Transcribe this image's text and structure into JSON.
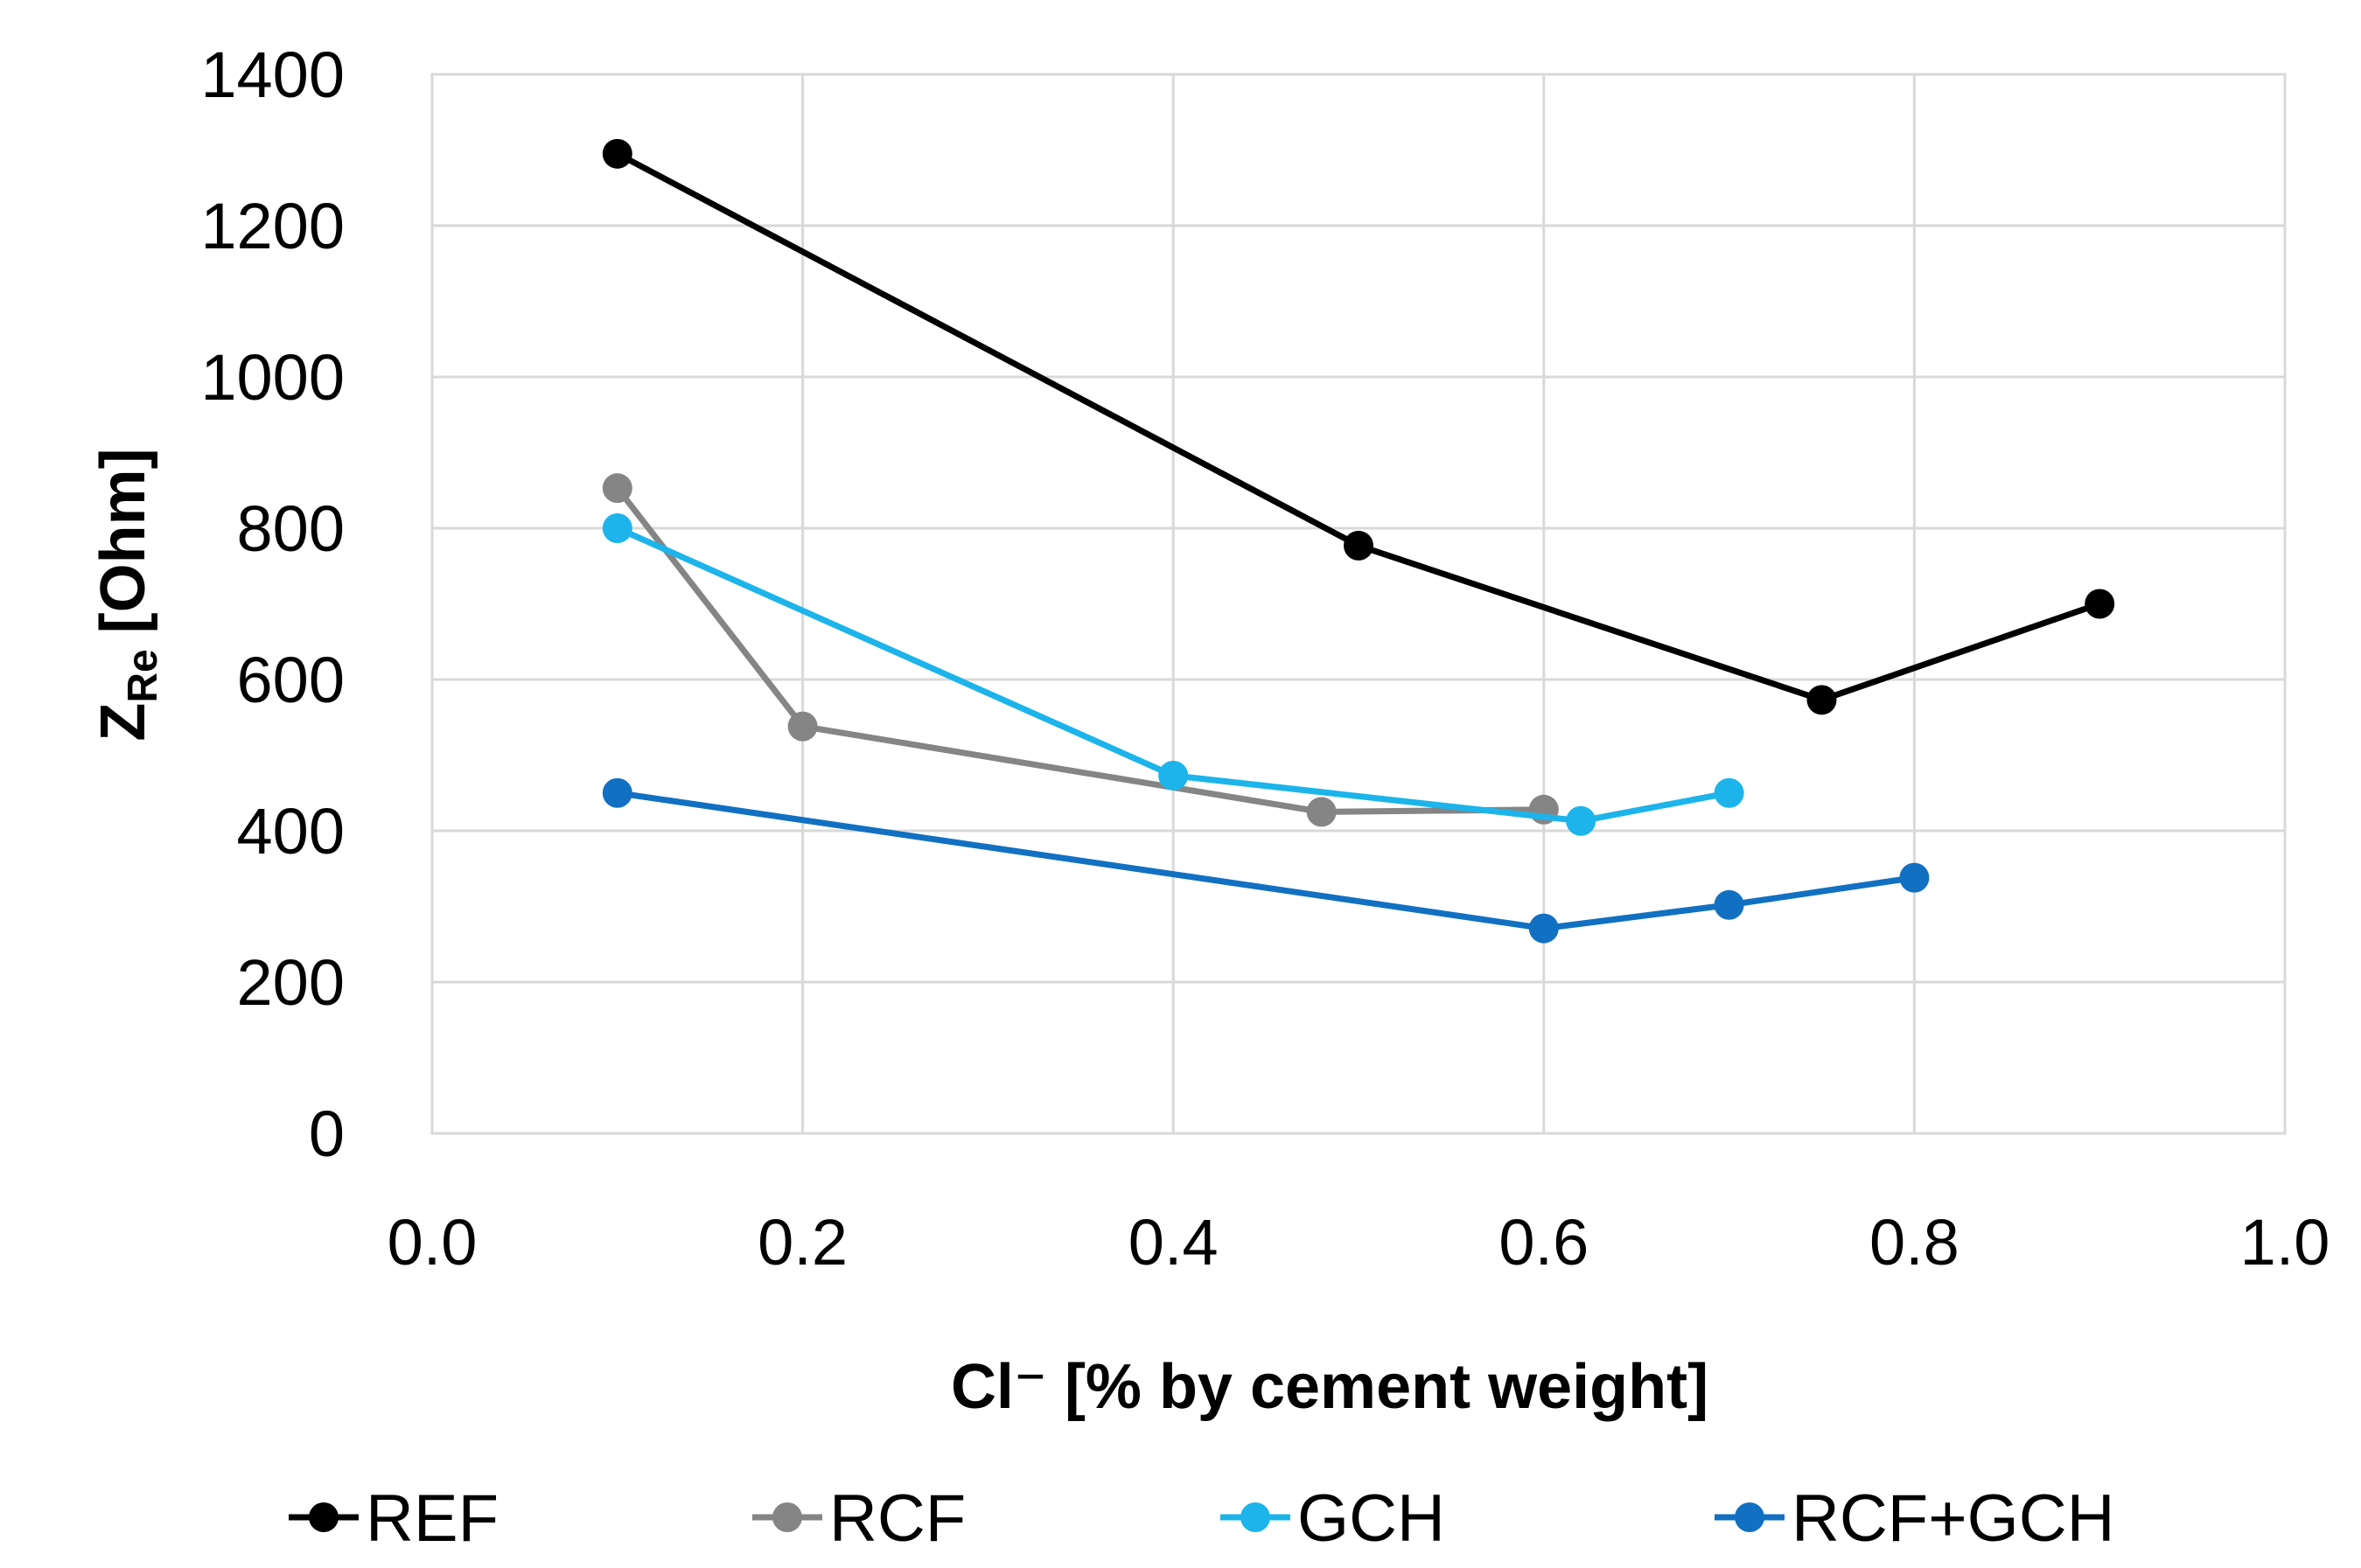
{
  "chart_data": {
    "type": "line",
    "xlabel": "Cl⁻ [% by cement weight]",
    "ylabel": "Z",
    "ylabel_subscript": "Re",
    "ylabel_unit": "[Ohm]",
    "xlim": [
      0.0,
      1.0
    ],
    "ylim": [
      0,
      1400
    ],
    "xticks": [
      0.0,
      0.2,
      0.4,
      0.6,
      0.8,
      1.0
    ],
    "xtick_labels": [
      "0.0",
      "0.2",
      "0.4",
      "0.6",
      "0.8",
      "1.0"
    ],
    "yticks": [
      0,
      200,
      400,
      600,
      800,
      1000,
      1200,
      1400
    ],
    "ytick_labels": [
      "0",
      "200",
      "400",
      "600",
      "800",
      "1000",
      "1200",
      "1400"
    ],
    "grid": true,
    "legend_position": "bottom",
    "series": [
      {
        "name": "REF",
        "color": "#000000",
        "x": [
          0.1,
          0.5,
          0.75,
          0.9
        ],
        "y": [
          1295,
          777,
          573,
          700
        ]
      },
      {
        "name": "RCF",
        "color": "#858585",
        "x": [
          0.1,
          0.2,
          0.48,
          0.6
        ],
        "y": [
          853,
          538,
          425,
          428
        ]
      },
      {
        "name": "GCH",
        "color": "#1CB4EA",
        "x": [
          0.1,
          0.4,
          0.62,
          0.7
        ],
        "y": [
          800,
          473,
          413,
          450
        ]
      },
      {
        "name": "RCF+GCH",
        "color": "#1170C2",
        "x": [
          0.1,
          0.6,
          0.7,
          0.8
        ],
        "y": [
          450,
          271,
          302,
          338
        ]
      }
    ]
  }
}
